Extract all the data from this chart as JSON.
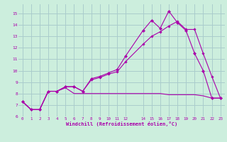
{
  "xlabel": "Windchill (Refroidissement éolien,°C)",
  "background_color": "#cceedd",
  "grid_color": "#aacccc",
  "line_color": "#aa00aa",
  "xlim": [
    -0.5,
    23.5
  ],
  "ylim": [
    6.0,
    15.8
  ],
  "xticks": [
    0,
    1,
    2,
    3,
    4,
    5,
    6,
    7,
    8,
    9,
    10,
    11,
    12,
    14,
    15,
    16,
    17,
    18,
    19,
    20,
    21,
    22,
    23
  ],
  "yticks": [
    6,
    7,
    8,
    9,
    10,
    11,
    12,
    13,
    14,
    15
  ],
  "jagged_x": [
    0,
    1,
    2,
    3,
    4,
    5,
    6,
    7,
    8,
    9,
    10,
    11,
    12,
    14,
    15,
    16,
    17,
    18,
    19,
    20,
    21,
    22,
    23
  ],
  "jagged_y": [
    7.3,
    6.6,
    6.6,
    8.2,
    8.2,
    8.6,
    8.6,
    8.2,
    9.3,
    9.5,
    9.8,
    10.1,
    11.3,
    13.5,
    14.4,
    13.7,
    15.2,
    14.2,
    13.5,
    11.5,
    10.0,
    7.6,
    7.6
  ],
  "smooth_x": [
    0,
    1,
    2,
    3,
    4,
    5,
    6,
    7,
    8,
    9,
    10,
    11,
    12,
    14,
    15,
    16,
    17,
    18,
    19,
    20,
    21,
    22,
    23
  ],
  "smooth_y": [
    7.3,
    6.6,
    6.6,
    8.2,
    8.2,
    8.6,
    8.6,
    8.2,
    9.2,
    9.4,
    9.7,
    9.9,
    10.8,
    12.3,
    13.0,
    13.4,
    13.9,
    14.3,
    13.6,
    13.6,
    11.5,
    9.5,
    7.6
  ],
  "flat_x": [
    0,
    1,
    2,
    3,
    4,
    5,
    6,
    7,
    8,
    9,
    10,
    11,
    12,
    14,
    15,
    16,
    17,
    18,
    19,
    20,
    21,
    22,
    23
  ],
  "flat_y": [
    7.3,
    6.6,
    6.6,
    8.2,
    8.2,
    8.5,
    8.0,
    8.0,
    8.0,
    8.0,
    8.0,
    8.0,
    8.0,
    8.0,
    8.0,
    8.0,
    7.9,
    7.9,
    7.9,
    7.9,
    7.8,
    7.6,
    7.6
  ]
}
